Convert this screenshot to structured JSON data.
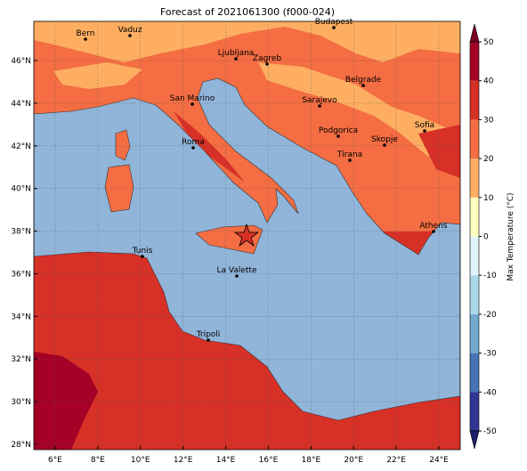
{
  "title": "Forecast of 2021061300 (f000-024)",
  "map": {
    "lonlim": [
      5,
      25
    ],
    "latlim": [
      27.75,
      47.84
    ],
    "lon_ticks": [
      {
        "value": 6,
        "label": "6°E"
      },
      {
        "value": 8,
        "label": "8°E"
      },
      {
        "value": 10,
        "label": "10°E"
      },
      {
        "value": 12,
        "label": "12°E"
      },
      {
        "value": 14,
        "label": "14°E"
      },
      {
        "value": 16,
        "label": "16°E"
      },
      {
        "value": 18,
        "label": "18°E"
      },
      {
        "value": 20,
        "label": "20°E"
      },
      {
        "value": 22,
        "label": "22°E"
      },
      {
        "value": 24,
        "label": "24°E"
      }
    ],
    "lat_ticks": [
      {
        "value": 28,
        "label": "28°N"
      },
      {
        "value": 30,
        "label": "30°N"
      },
      {
        "value": 32,
        "label": "32°N"
      },
      {
        "value": 34,
        "label": "34°N"
      },
      {
        "value": 36,
        "label": "36°N"
      },
      {
        "value": 38,
        "label": "38°N"
      },
      {
        "value": 40,
        "label": "40°N"
      },
      {
        "value": 42,
        "label": "42°N"
      },
      {
        "value": 44,
        "label": "44°N"
      },
      {
        "value": 46,
        "label": "46°N"
      }
    ],
    "cities": [
      "Bern",
      "Vaduz",
      "Budapest",
      "Ljubljana",
      "Zagreb",
      "San Marino",
      "Belgrade",
      "Sarajevo",
      "Sofia",
      "Podgorica",
      "Skopje",
      "Roma",
      "Tirana",
      "Athens",
      "Tunis",
      "La Valette",
      "Tripoli"
    ]
  },
  "colorbar": {
    "label": "Max Temperature (°C)",
    "lim": [
      -50,
      50
    ],
    "ticks": [
      -50,
      -40,
      -30,
      -20,
      -10,
      0,
      10,
      20,
      30,
      40,
      50
    ],
    "colors": [
      "#313695",
      "#4575b4",
      "#74a9cf",
      "#abd9e9",
      "#e0f3f8",
      "#ffffbf",
      "#fdae61",
      "#f46d43",
      "#d73027",
      "#a50026"
    ],
    "under_color": "#1f1f6e",
    "over_color": "#7a0020"
  }
}
